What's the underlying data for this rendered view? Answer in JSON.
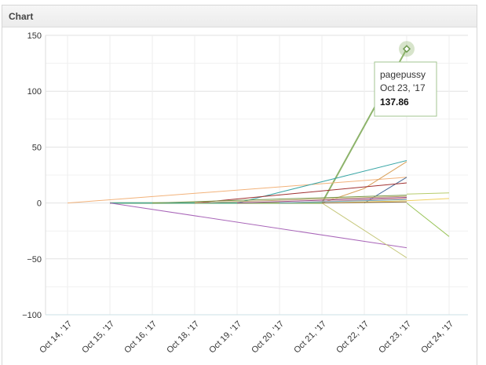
{
  "panel": {
    "title": "Chart"
  },
  "chart_data": {
    "type": "line",
    "categories": [
      "Oct 14, '17",
      "Oct 15, '17",
      "Oct 16, '17",
      "Oct 18, '17",
      "Oct 19, '17",
      "Oct 20, '17",
      "Oct 21, '17",
      "Oct 22, '17",
      "Oct 23, '17",
      "Oct 24, '17"
    ],
    "ylim": [
      -100,
      150
    ],
    "yticks": [
      -100,
      -50,
      0,
      50,
      100,
      150
    ],
    "grid": true,
    "legend": "none",
    "series": [
      {
        "name": "pagepussy",
        "color": "#8db36b",
        "width": 2,
        "points": [
          [
            1,
            0
          ],
          [
            6,
            0
          ],
          [
            8,
            137.86
          ]
        ]
      },
      {
        "color": "#f2b27a",
        "points": [
          [
            0,
            0
          ],
          [
            8,
            23
          ]
        ]
      },
      {
        "color": "#3aa6a6",
        "points": [
          [
            1,
            0
          ],
          [
            4,
            0
          ],
          [
            8,
            38
          ]
        ]
      },
      {
        "color": "#a865b8",
        "points": [
          [
            1,
            0
          ],
          [
            8,
            -40
          ]
        ]
      },
      {
        "color": "#c5c77a",
        "points": [
          [
            6,
            0
          ],
          [
            8,
            -49
          ]
        ]
      },
      {
        "color": "#d9a15a",
        "points": [
          [
            6,
            0
          ],
          [
            7,
            13
          ],
          [
            8,
            37
          ]
        ]
      },
      {
        "color": "#4a6e9a",
        "points": [
          [
            7,
            0
          ],
          [
            8,
            23
          ]
        ]
      },
      {
        "color": "#a03030",
        "points": [
          [
            3,
            0
          ],
          [
            8,
            18
          ]
        ]
      },
      {
        "color": "#b6cc6c",
        "points": [
          [
            8,
            8
          ],
          [
            9,
            9
          ]
        ]
      },
      {
        "color": "#9bc55b",
        "points": [
          [
            8,
            0
          ],
          [
            9,
            -30
          ]
        ]
      },
      {
        "color": "#f0d060",
        "points": [
          [
            6,
            0
          ],
          [
            8,
            2
          ],
          [
            9,
            4
          ]
        ]
      },
      {
        "color": "#7a9a4a",
        "points": [
          [
            2,
            0
          ],
          [
            8,
            7
          ]
        ]
      },
      {
        "color": "#9a4a8a",
        "points": [
          [
            4,
            0
          ],
          [
            8,
            5
          ]
        ]
      },
      {
        "color": "#d08a8a",
        "points": [
          [
            5,
            0
          ],
          [
            8,
            4
          ]
        ]
      },
      {
        "color": "#8a6a3a",
        "points": [
          [
            6,
            0
          ],
          [
            8,
            1
          ]
        ]
      },
      {
        "color": "#6aaac0",
        "points": [
          [
            5,
            0
          ],
          [
            8,
            3
          ]
        ]
      },
      {
        "color": "#c0a070",
        "points": [
          [
            3,
            0
          ],
          [
            8,
            6
          ]
        ]
      }
    ],
    "tooltip": {
      "series": "pagepussy",
      "date": "Oct 23, '17",
      "value": "137.86",
      "point": [
        8,
        137.86
      ]
    },
    "x_axis_color": "#cbe0e6",
    "grid_color": "#e8e8e8"
  }
}
